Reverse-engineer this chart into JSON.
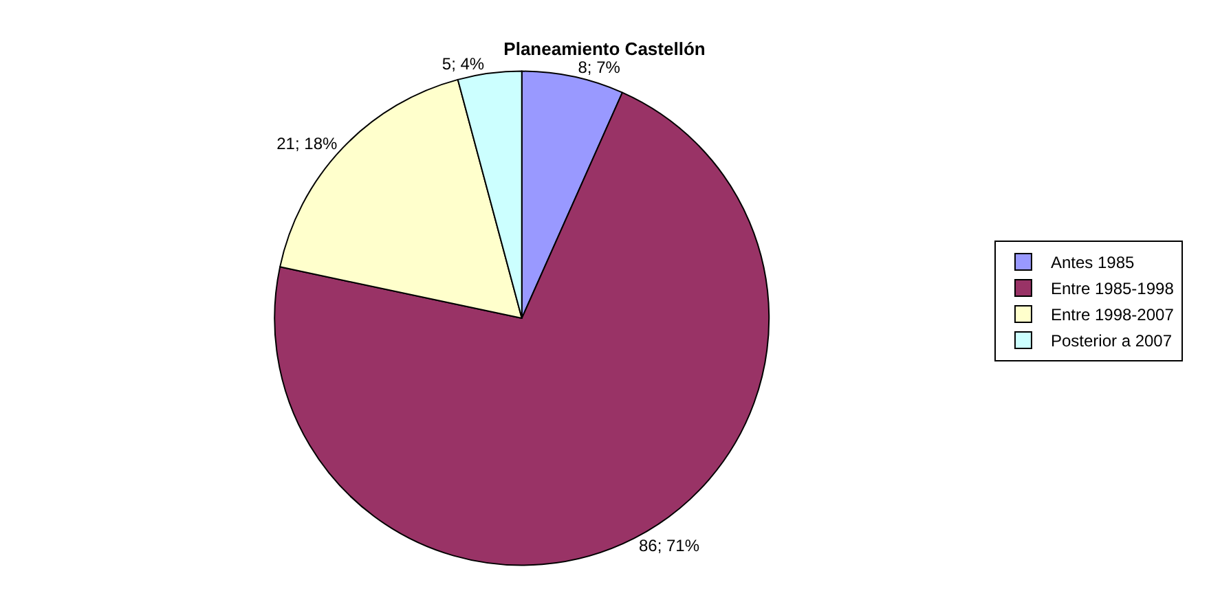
{
  "chart_data": {
    "type": "pie",
    "title": "Planeamiento Castellón",
    "categories": [
      "Antes 1985",
      "Entre 1985-1998",
      "Entre 1998-2007",
      "Posterior a 2007"
    ],
    "values": [
      8,
      86,
      21,
      5
    ],
    "colors": [
      "#9999ff",
      "#993366",
      "#ffffcc",
      "#ccffff"
    ],
    "value_labels": [
      "8; 7%",
      "86; 71%",
      "21; 18%",
      "5; 4%"
    ],
    "legend": "right"
  }
}
